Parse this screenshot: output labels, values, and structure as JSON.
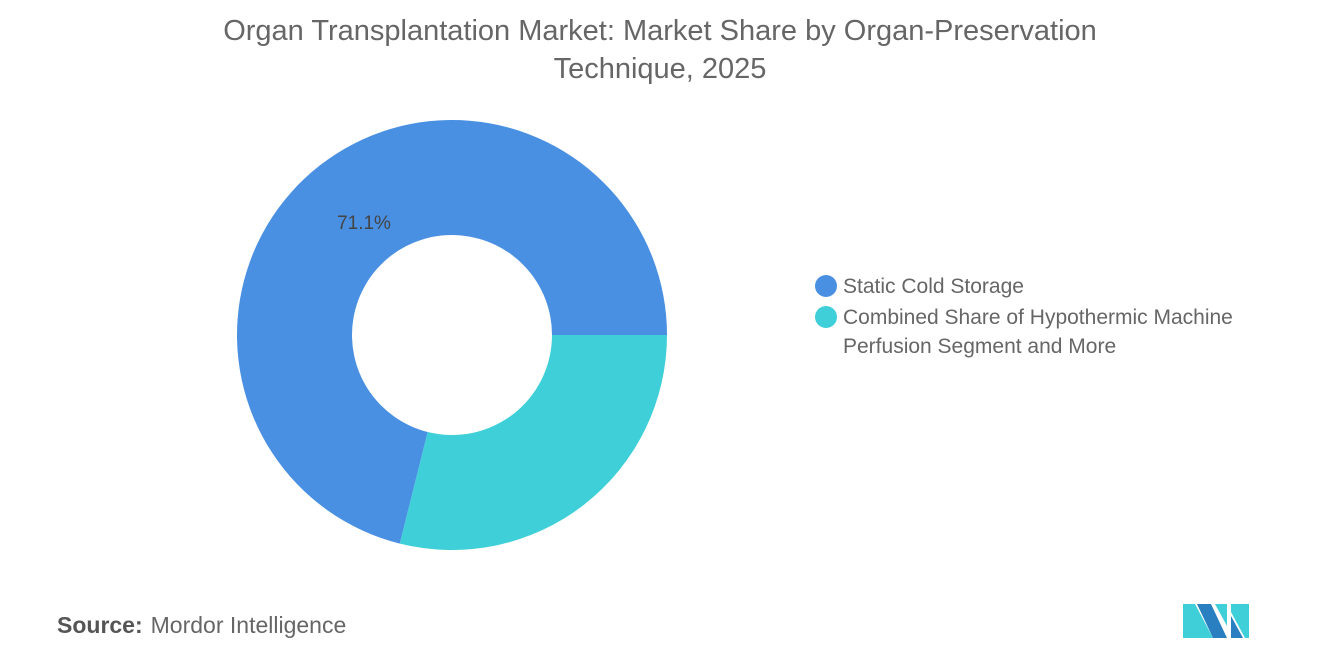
{
  "chart_data": {
    "type": "pie",
    "donut": true,
    "title": "Organ Transplantation Market: Market Share by Organ-Preservation Technique, 2025",
    "categories": [
      "Static Cold Storage",
      "Combined Share of Hypothermic Machine Perfusion Segment and More"
    ],
    "values": [
      71.1,
      28.9
    ],
    "data_labels": [
      "71.1%",
      ""
    ],
    "colors": [
      "#4A90E2",
      "#3ECFD8"
    ],
    "legend_position": "right"
  },
  "source": {
    "label": "Source:",
    "value": "Mordor Intelligence"
  },
  "logo": {
    "text": "Mordor Intelligence"
  }
}
